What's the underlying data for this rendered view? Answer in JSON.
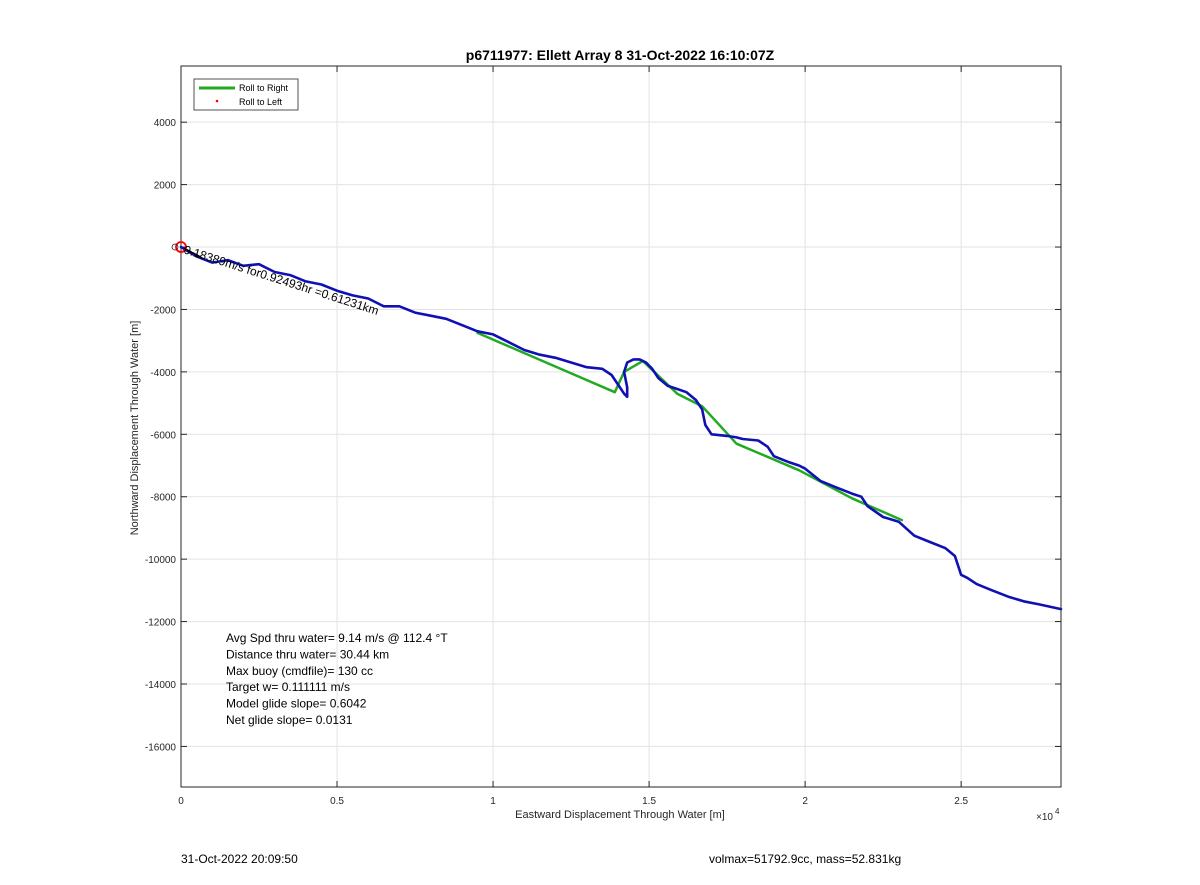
{
  "chart_data": {
    "type": "line",
    "title": "p6711977: Ellett Array 8 31-Oct-2022 16:10:07Z",
    "xlabel": "Eastward Displacement Through Water [m]",
    "ylabel": "Northward Displacement Through Water [m]",
    "x_exponent_label": "×10",
    "x_exponent_power": "4",
    "xlim": [
      0,
      28200
    ],
    "ylim": [
      -17300,
      5800
    ],
    "grid": true,
    "x_ticks": [
      0,
      5000,
      10000,
      15000,
      20000,
      25000
    ],
    "x_tick_labels": [
      "0",
      "0.5",
      "1",
      "1.5",
      "2",
      "2.5"
    ],
    "y_ticks": [
      4000,
      2000,
      0,
      -2000,
      -4000,
      -6000,
      -8000,
      -10000,
      -12000,
      -14000,
      -16000
    ],
    "y_tick_labels": [
      "4000",
      "2000",
      "",
      "-2000",
      "-4000",
      "-6000",
      "-8000",
      "-10000",
      "-12000",
      "-14000",
      "-16000"
    ],
    "legend": {
      "placement": "top-left",
      "entries": [
        {
          "label": "Roll to Right",
          "color": "#22aa22",
          "style": "line"
        },
        {
          "label": "Roll to Left",
          "color": "#ff0000",
          "style": "dot"
        }
      ]
    },
    "series": [
      {
        "name": "Roll to Right",
        "color": "#22aa22",
        "x": [
          9500,
          13900,
          14200,
          14800,
          15900,
          16700,
          17800,
          19800,
          21500,
          23100
        ],
        "y": [
          -2750,
          -4650,
          -4000,
          -3650,
          -4700,
          -5100,
          -6300,
          -7150,
          -8050,
          -8750
        ]
      },
      {
        "name": "track",
        "color": "#1010b4",
        "x": [
          0,
          500,
          1000,
          1500,
          2000,
          2500,
          3000,
          3500,
          4000,
          4500,
          5000,
          5500,
          6000,
          6500,
          7000,
          7500,
          8000,
          8500,
          9000,
          9500,
          10000,
          10500,
          11000,
          11500,
          12000,
          12500,
          13000,
          13500,
          13800,
          14000,
          14200,
          14300,
          14300,
          14200,
          14300,
          14500,
          14700,
          14900,
          15100,
          15300,
          15600,
          15900,
          16200,
          16500,
          16700,
          16800,
          17000,
          17500,
          17800,
          18000,
          18500,
          18800,
          19000,
          19500,
          19800,
          20000,
          20500,
          21000,
          21500,
          21800,
          22000,
          22500,
          23000,
          23500,
          24000,
          24500,
          24800,
          25000,
          25200,
          25500,
          26000,
          26500,
          27000,
          27500,
          28200
        ],
        "y": [
          0,
          -300,
          -500,
          -420,
          -600,
          -550,
          -800,
          -900,
          -1100,
          -1200,
          -1400,
          -1550,
          -1650,
          -1900,
          -1900,
          -2100,
          -2200,
          -2300,
          -2500,
          -2700,
          -2800,
          -3050,
          -3300,
          -3450,
          -3550,
          -3700,
          -3850,
          -3900,
          -4100,
          -4400,
          -4700,
          -4800,
          -4500,
          -4000,
          -3700,
          -3600,
          -3600,
          -3700,
          -3900,
          -4200,
          -4450,
          -4550,
          -4650,
          -4900,
          -5200,
          -5700,
          -6000,
          -6050,
          -6100,
          -6150,
          -6200,
          -6400,
          -6700,
          -6900,
          -7000,
          -7100,
          -7500,
          -7700,
          -7900,
          -8000,
          -8300,
          -8650,
          -8800,
          -9250,
          -9450,
          -9650,
          -9900,
          -10500,
          -10600,
          -10800,
          -11000,
          -11200,
          -11350,
          -11450,
          -11600
        ]
      }
    ],
    "annotations": {
      "segment_label": "0.18389m/s for0.92493hr =0.61231km",
      "stats": [
        "Avg Spd thru water=  9.14 m/s @ 112.4 °T",
        "Distance thru water= 30.44 km",
        "Max buoy (cmdfile)= 130 cc",
        "Target w= 0.111111 m/s",
        "Model glide slope= 0.6042",
        "Net glide slope= 0.0131"
      ]
    }
  },
  "footer": {
    "timestamp": "31-Oct-2022 20:09:50",
    "vol_mass": "volmax=51792.9cc, mass=52.831kg"
  },
  "colors": {
    "track": "#1010b4",
    "roll_right": "#22aa22",
    "roll_left": "#ff0000",
    "grid": "#e3e3e3",
    "axis": "#262626"
  }
}
